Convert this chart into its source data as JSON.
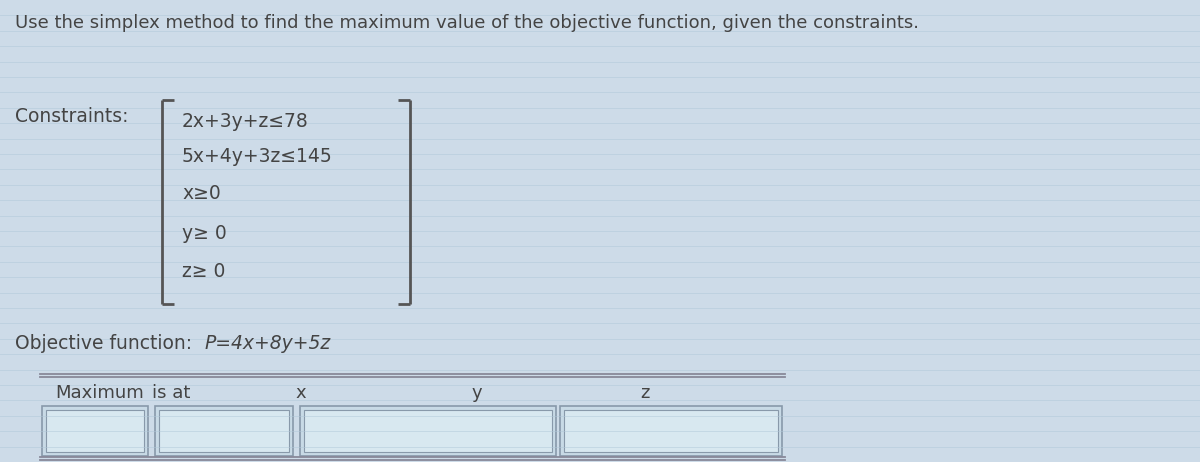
{
  "title": "Use the simplex method to find the maximum value of the objective function, given the constraints.",
  "title_fontsize": 13.0,
  "title_color": "#444444",
  "background_color": "#cddbe8",
  "line_color": "#b8ccd8",
  "constraints_label": "Constraints:",
  "constraints_lines": [
    "2x+3y+z≤78",
    "5x+4y+3z≤145",
    "x≥0",
    "y≥ 0",
    "z≥ 0"
  ],
  "objective_label": "Objective function:",
  "objective_function": "P=4x+8y+5z",
  "text_color": "#444444",
  "box_facecolor": "#c8dae6",
  "box_edgecolor": "#8899aa",
  "box_inner_facecolor": "#d8e8f0",
  "font_family": "DejaVu Sans",
  "constraints_fontsize": 13.5,
  "objective_fontsize": 13.5,
  "table_fontsize": 13.0,
  "bracket_color": "#555555",
  "n_hlines": 30,
  "hline_color": "#b0c8d8",
  "hline_alpha": 0.5
}
